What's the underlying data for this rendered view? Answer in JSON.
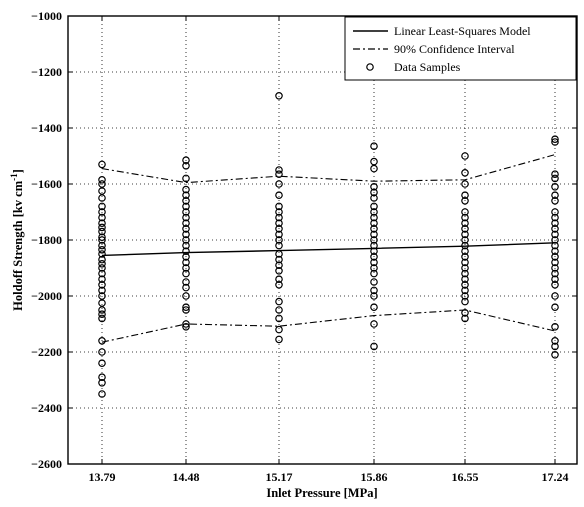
{
  "chart_data": {
    "type": "scatter",
    "title": "",
    "xlabel": "Inlet Pressure [MPa]",
    "ylabel_main": "Holdoff Strength [kv cm",
    "ylabel_sup": "-1",
    "ylabel_end": "]",
    "x_ticks": [
      "13.79",
      "14.48",
      "15.17",
      "15.86",
      "16.55",
      "17.24"
    ],
    "y_ticks": [
      -1000,
      -1200,
      -1400,
      -1600,
      -1800,
      -2000,
      -2200,
      -2400,
      -2600
    ],
    "ylim": [
      -2600,
      -1000
    ],
    "grid": true,
    "legend_position": "top-right",
    "legend": {
      "linear": "Linear Least-Squares Model",
      "confidence": "90% Confidence Interval",
      "samples": "Data Samples"
    },
    "linear_model": [
      -1855,
      -1845,
      -1838,
      -1830,
      -1822,
      -1810
    ],
    "confidence_upper": [
      -1545,
      -1595,
      -1572,
      -1590,
      -1585,
      -1495
    ],
    "confidence_lower": [
      -2165,
      -2100,
      -2108,
      -2070,
      -2050,
      -2125
    ],
    "samples": [
      {
        "x": "13.79",
        "y": [
          -1530,
          -1585,
          -1600,
          -1625,
          -1650,
          -1680,
          -1700,
          -1720,
          -1740,
          -1755,
          -1770,
          -1790,
          -1800,
          -1820,
          -1835,
          -1850,
          -1870,
          -1885,
          -1900,
          -1920,
          -1940,
          -1960,
          -1980,
          -2000,
          -2025,
          -2050,
          -2065,
          -2080,
          -2160,
          -2200,
          -2240,
          -2290,
          -2310,
          -2350
        ]
      },
      {
        "x": "14.48",
        "y": [
          -1515,
          -1535,
          -1580,
          -1620,
          -1640,
          -1660,
          -1680,
          -1700,
          -1720,
          -1740,
          -1760,
          -1780,
          -1800,
          -1820,
          -1840,
          -1860,
          -1880,
          -1900,
          -1920,
          -1950,
          -1970,
          -2000,
          -2040,
          -2050,
          -2100,
          -2110
        ]
      },
      {
        "x": "15.17",
        "y": [
          -1285,
          -1550,
          -1565,
          -1600,
          -1640,
          -1680,
          -1700,
          -1720,
          -1740,
          -1760,
          -1780,
          -1800,
          -1820,
          -1850,
          -1870,
          -1890,
          -1910,
          -1940,
          -1960,
          -2020,
          -2050,
          -2080,
          -2120,
          -2155
        ]
      },
      {
        "x": "15.86",
        "y": [
          -1465,
          -1520,
          -1545,
          -1610,
          -1630,
          -1650,
          -1680,
          -1700,
          -1720,
          -1740,
          -1760,
          -1780,
          -1800,
          -1820,
          -1840,
          -1860,
          -1880,
          -1900,
          -1920,
          -1950,
          -1980,
          -2000,
          -2040,
          -2100,
          -2180
        ]
      },
      {
        "x": "16.55",
        "y": [
          -1500,
          -1560,
          -1600,
          -1640,
          -1660,
          -1700,
          -1720,
          -1740,
          -1760,
          -1780,
          -1800,
          -1820,
          -1840,
          -1860,
          -1880,
          -1900,
          -1920,
          -1940,
          -1960,
          -1980,
          -2000,
          -2020,
          -2060,
          -2080
        ]
      },
      {
        "x": "17.24",
        "y": [
          -1440,
          -1450,
          -1565,
          -1580,
          -1610,
          -1640,
          -1660,
          -1700,
          -1720,
          -1740,
          -1760,
          -1780,
          -1800,
          -1820,
          -1840,
          -1860,
          -1880,
          -1900,
          -1920,
          -1940,
          -1960,
          -2000,
          -2040,
          -2110,
          -2160,
          -2180,
          -2210
        ]
      }
    ]
  }
}
